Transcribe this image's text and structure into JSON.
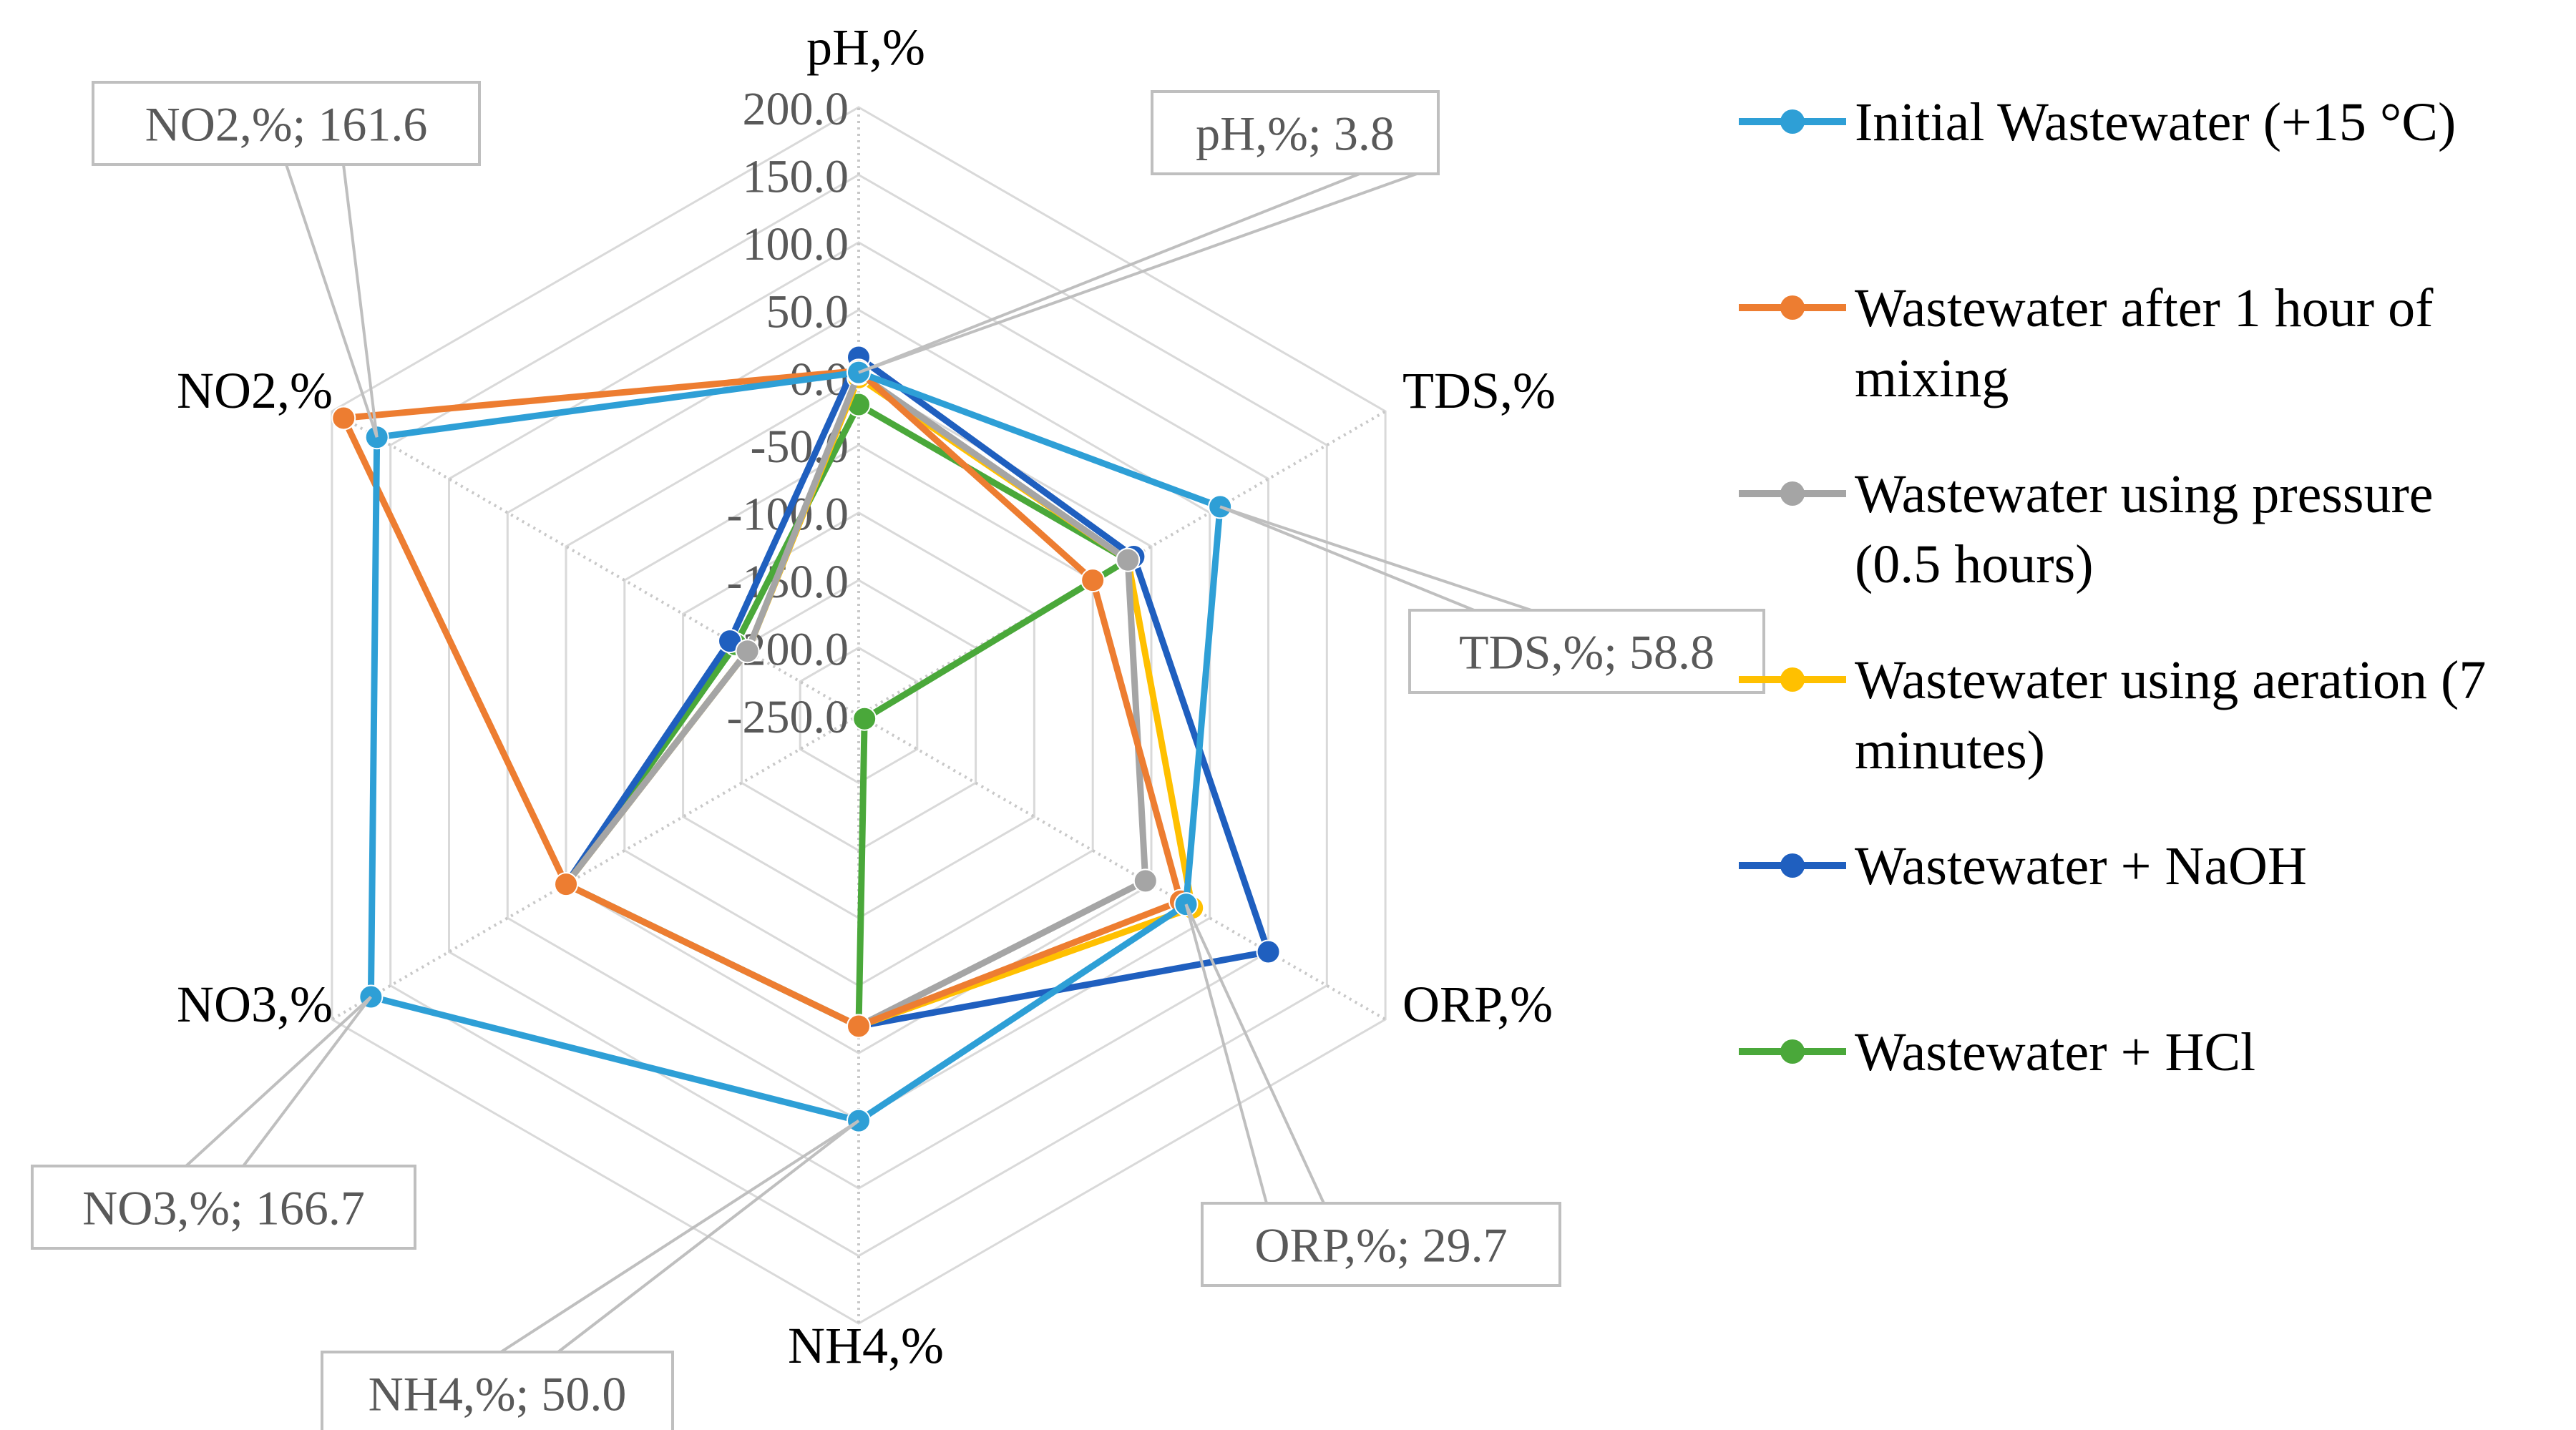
{
  "chart_data": {
    "type": "radar",
    "title": "",
    "axes": [
      "pH,%",
      "TDS,%",
      "ORP,%",
      "NH4,%",
      "NO3,%",
      "NO2,%"
    ],
    "rlim": [
      -250,
      200
    ],
    "tick_values": [
      200,
      150,
      100,
      50,
      0,
      -50,
      -100,
      -150,
      -200,
      -250
    ],
    "tick_labels": [
      "200.0",
      "150.0",
      "100.0",
      "50.0",
      "0.0",
      "-50.0",
      "-100.0",
      "-150.0",
      "-200.0",
      "-250.0"
    ],
    "legend_position": "right",
    "series": [
      {
        "name": "Initial Wastewater (+15 °C)",
        "legend_lines": [
          "Initial Wastewater (+15 °C)"
        ],
        "color": "#2e9fd6",
        "values": [
          3.8,
          58.8,
          29.7,
          50.0,
          166.7,
          161.6
        ]
      },
      {
        "name": "Wastewater after 1 hour of mixing",
        "legend_lines": [
          "Wastewater after 1 hour of",
          "mixing"
        ],
        "color": "#ed7d31",
        "values": [
          5,
          -50,
          25,
          -20,
          0,
          190
        ]
      },
      {
        "name": "Wastewater using pressure (0.5 hours)",
        "legend_lines": [
          "Wastewater using pressure",
          "(0.5 hours)"
        ],
        "color": "#a5a5a5",
        "values": [
          3,
          -20,
          -5,
          -20,
          0,
          -155
        ]
      },
      {
        "name": "Wastewater using aeration (7 minutes)",
        "legend_lines": [
          "Wastewater using aeration (7",
          "minutes)"
        ],
        "color": "#ffc000",
        "values": [
          0,
          -20,
          35,
          -20,
          0,
          -155
        ]
      },
      {
        "name": "Wastewater + NaOH",
        "legend_lines": [
          "Wastewater + NaOH"
        ],
        "color": "#1f5fbf",
        "values": [
          15,
          -15,
          100,
          -20,
          0,
          -140
        ]
      },
      {
        "name": "Wastewater + HCl",
        "legend_lines": [
          "Wastewater + HCl"
        ],
        "color": "#4aa83a",
        "values": [
          -20,
          -20,
          -245,
          -20,
          0,
          -145
        ]
      }
    ],
    "annotations": [
      {
        "text": "pH,%; 3.8",
        "axis": 0,
        "series": 0
      },
      {
        "text": "TDS,%; 58.8",
        "axis": 1,
        "series": 0
      },
      {
        "text": "ORP,%; 29.7",
        "axis": 2,
        "series": 0
      },
      {
        "text": "NH4,%; 50.0",
        "axis": 3,
        "series": 0
      },
      {
        "text": "NO3,%; 166.7",
        "axis": 4,
        "series": 0
      },
      {
        "text": "NO2,%; 161.6",
        "axis": 5,
        "series": 0
      }
    ]
  }
}
